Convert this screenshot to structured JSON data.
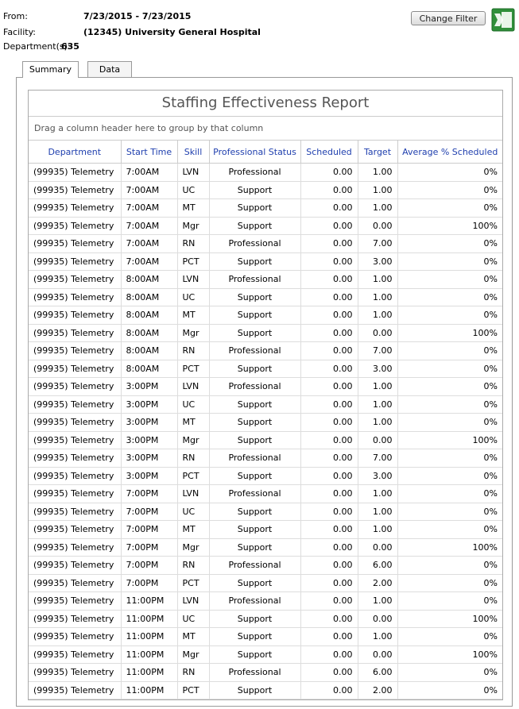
{
  "header": {
    "from_label": "From:",
    "from_value": "7/23/2015 - 7/23/2015",
    "facility_label": "Facility:",
    "facility_value": "(12345) University General Hospital",
    "department_label": "Department(s):",
    "department_value": "635"
  },
  "change_filter": "Change Filter",
  "tabs": [
    "Summary",
    "Data"
  ],
  "report": {
    "title": "Staffing Effectiveness Report",
    "group_hint": "Drag a column header here to group by that column",
    "columns": [
      "Department",
      "Start Time",
      "Skill",
      "Professional Status",
      "Scheduled",
      "Target",
      "Average % Scheduled"
    ],
    "rows": [
      [
        "(99935) Telemetry",
        "7:00AM",
        "LVN",
        "Professional",
        "0.00",
        "1.00",
        "0%"
      ],
      [
        "(99935) Telemetry",
        "7:00AM",
        "UC",
        "Support",
        "0.00",
        "1.00",
        "0%"
      ],
      [
        "(99935) Telemetry",
        "7:00AM",
        "MT",
        "Support",
        "0.00",
        "1.00",
        "0%"
      ],
      [
        "(99935) Telemetry",
        "7:00AM",
        "Mgr",
        "Support",
        "0.00",
        "0.00",
        "100%"
      ],
      [
        "(99935) Telemetry",
        "7:00AM",
        "RN",
        "Professional",
        "0.00",
        "7.00",
        "0%"
      ],
      [
        "(99935) Telemetry",
        "7:00AM",
        "PCT",
        "Support",
        "0.00",
        "3.00",
        "0%"
      ],
      [
        "(99935) Telemetry",
        "8:00AM",
        "LVN",
        "Professional",
        "0.00",
        "1.00",
        "0%"
      ],
      [
        "(99935) Telemetry",
        "8:00AM",
        "UC",
        "Support",
        "0.00",
        "1.00",
        "0%"
      ],
      [
        "(99935) Telemetry",
        "8:00AM",
        "MT",
        "Support",
        "0.00",
        "1.00",
        "0%"
      ],
      [
        "(99935) Telemetry",
        "8:00AM",
        "Mgr",
        "Support",
        "0.00",
        "0.00",
        "100%"
      ],
      [
        "(99935) Telemetry",
        "8:00AM",
        "RN",
        "Professional",
        "0.00",
        "7.00",
        "0%"
      ],
      [
        "(99935) Telemetry",
        "8:00AM",
        "PCT",
        "Support",
        "0.00",
        "3.00",
        "0%"
      ],
      [
        "(99935) Telemetry",
        "3:00PM",
        "LVN",
        "Professional",
        "0.00",
        "1.00",
        "0%"
      ],
      [
        "(99935) Telemetry",
        "3:00PM",
        "UC",
        "Support",
        "0.00",
        "1.00",
        "0%"
      ],
      [
        "(99935) Telemetry",
        "3:00PM",
        "MT",
        "Support",
        "0.00",
        "1.00",
        "0%"
      ],
      [
        "(99935) Telemetry",
        "3:00PM",
        "Mgr",
        "Support",
        "0.00",
        "0.00",
        "100%"
      ],
      [
        "(99935) Telemetry",
        "3:00PM",
        "RN",
        "Professional",
        "0.00",
        "7.00",
        "0%"
      ],
      [
        "(99935) Telemetry",
        "3:00PM",
        "PCT",
        "Support",
        "0.00",
        "3.00",
        "0%"
      ],
      [
        "(99935) Telemetry",
        "7:00PM",
        "LVN",
        "Professional",
        "0.00",
        "1.00",
        "0%"
      ],
      [
        "(99935) Telemetry",
        "7:00PM",
        "UC",
        "Support",
        "0.00",
        "1.00",
        "0%"
      ],
      [
        "(99935) Telemetry",
        "7:00PM",
        "MT",
        "Support",
        "0.00",
        "1.00",
        "0%"
      ],
      [
        "(99935) Telemetry",
        "7:00PM",
        "Mgr",
        "Support",
        "0.00",
        "0.00",
        "100%"
      ],
      [
        "(99935) Telemetry",
        "7:00PM",
        "RN",
        "Professional",
        "0.00",
        "6.00",
        "0%"
      ],
      [
        "(99935) Telemetry",
        "7:00PM",
        "PCT",
        "Support",
        "0.00",
        "2.00",
        "0%"
      ],
      [
        "(99935) Telemetry",
        "11:00PM",
        "LVN",
        "Professional",
        "0.00",
        "1.00",
        "0%"
      ],
      [
        "(99935) Telemetry",
        "11:00PM",
        "UC",
        "Support",
        "0.00",
        "0.00",
        "100%"
      ],
      [
        "(99935) Telemetry",
        "11:00PM",
        "MT",
        "Support",
        "0.00",
        "1.00",
        "0%"
      ],
      [
        "(99935) Telemetry",
        "11:00PM",
        "Mgr",
        "Support",
        "0.00",
        "0.00",
        "100%"
      ],
      [
        "(99935) Telemetry",
        "11:00PM",
        "RN",
        "Professional",
        "0.00",
        "6.00",
        "0%"
      ],
      [
        "(99935) Telemetry",
        "11:00PM",
        "PCT",
        "Support",
        "0.00",
        "2.00",
        "0%"
      ]
    ]
  }
}
